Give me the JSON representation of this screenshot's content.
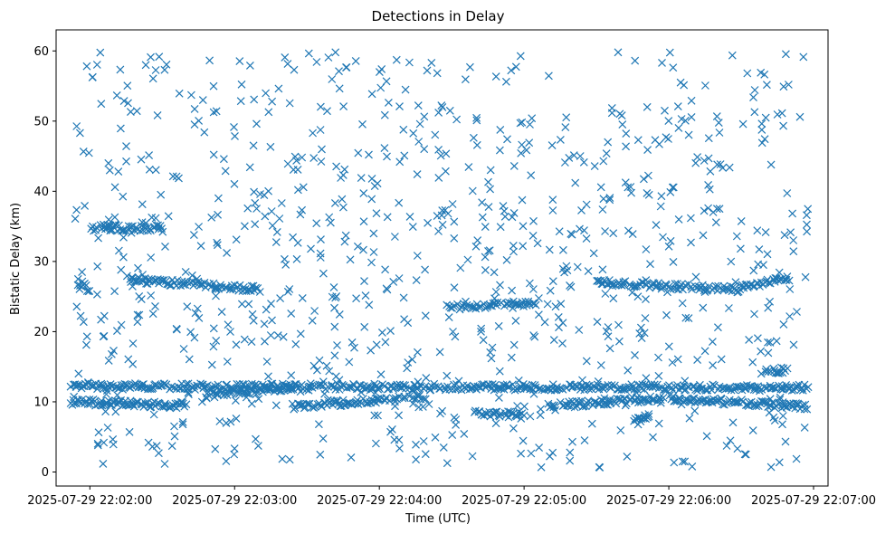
{
  "chart_data": {
    "type": "scatter",
    "title": "Detections in Delay",
    "xlabel": "Time (UTC)",
    "ylabel": "Bistatic Delay (km)",
    "marker": "x",
    "color": "#1f77b4",
    "grid": false,
    "legend": "none",
    "xlim": [
      "2025-07-29 22:01:46",
      "2025-07-29 22:07:06"
    ],
    "ylim": [
      -2,
      63
    ],
    "x_ticks": [
      "2025-07-29 22:02:00",
      "2025-07-29 22:03:00",
      "2025-07-29 22:04:00",
      "2025-07-29 22:05:00",
      "2025-07-29 22:06:00",
      "2025-07-29 22:07:00"
    ],
    "y_ticks": [
      0,
      10,
      20,
      30,
      40,
      50,
      60
    ],
    "data_range": {
      "x": [
        "2025-07-29 22:01:52",
        "2025-07-29 22:06:58"
      ],
      "y": [
        0.5,
        59.8
      ]
    },
    "tracks": [
      {
        "x": [
          "2025-07-29 22:01:52",
          "2025-07-29 22:06:58"
        ],
        "y": [
          12.2,
          12.0
        ]
      },
      {
        "x": [
          "2025-07-29 22:01:52",
          "2025-07-29 22:02:40"
        ],
        "y": [
          10.0,
          9.5
        ]
      },
      {
        "x": [
          "2025-07-29 22:02:48",
          "2025-07-29 22:03:24"
        ],
        "y": [
          11.0,
          12.0
        ]
      },
      {
        "x": [
          "2025-07-29 22:03:24",
          "2025-07-29 22:04:20"
        ],
        "y": [
          9.3,
          10.8
        ]
      },
      {
        "x": [
          "2025-07-29 22:05:10",
          "2025-07-29 22:05:58"
        ],
        "y": [
          9.4,
          10.5
        ]
      },
      {
        "x": [
          "2025-07-29 22:06:00",
          "2025-07-29 22:06:58"
        ],
        "y": [
          10.5,
          9.3
        ]
      },
      {
        "x": [
          "2025-07-29 22:02:15",
          "2025-07-29 22:03:10"
        ],
        "y": [
          27.5,
          26.0
        ]
      },
      {
        "x": [
          "2025-07-29 22:04:28",
          "2025-07-29 22:05:05"
        ],
        "y": [
          23.5,
          24.0
        ]
      },
      {
        "x": [
          "2025-07-29 22:05:30",
          "2025-07-29 22:06:30"
        ],
        "y": [
          27.0,
          26.0
        ]
      },
      {
        "x": [
          "2025-07-29 22:06:30",
          "2025-07-29 22:06:50"
        ],
        "y": [
          26.5,
          27.5
        ]
      },
      {
        "x": [
          "2025-07-29 22:02:00",
          "2025-07-29 22:02:30"
        ],
        "y": [
          34.8,
          34.8
        ]
      },
      {
        "x": [
          "2025-07-29 22:01:55",
          "2025-07-29 22:02:00"
        ],
        "y": [
          26.5,
          26.0
        ]
      },
      {
        "x": [
          "2025-07-29 22:04:40",
          "2025-07-29 22:05:00"
        ],
        "y": [
          8.5,
          8.0
        ]
      },
      {
        "x": [
          "2025-07-29 22:05:45",
          "2025-07-29 22:05:52"
        ],
        "y": [
          7.5,
          7.5
        ]
      },
      {
        "x": [
          "2025-07-29 22:06:40",
          "2025-07-29 22:06:50"
        ],
        "y": [
          14.5,
          14.5
        ]
      }
    ],
    "clutter_seed": 20250729,
    "clutter_count": 900
  }
}
